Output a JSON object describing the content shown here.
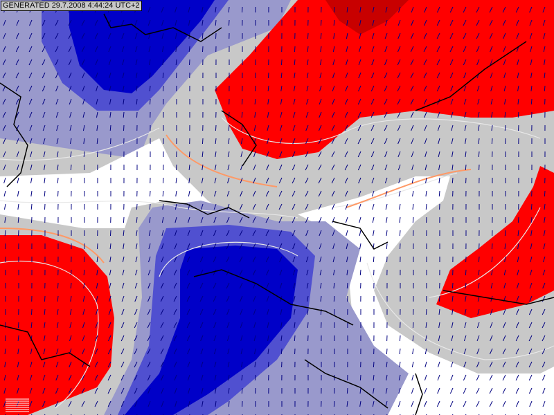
{
  "header": {
    "generated_label": "GENERATED 29.7.2008 4:44:24 UTC+2"
  },
  "map": {
    "colors": {
      "background_gray": "#c8c8c8",
      "red": "#ff0000",
      "dark_red": "#c80000",
      "dark_blue": "#0000c8",
      "mid_blue": "#5050d0",
      "light_purple": "#9999cc",
      "white": "#ffffff",
      "orange": "#ff9966",
      "wind_arrow": "#000080",
      "borders": "#000000"
    },
    "layers": [
      "filled-contours",
      "contour-lines",
      "wind-arrows",
      "country-borders"
    ]
  }
}
